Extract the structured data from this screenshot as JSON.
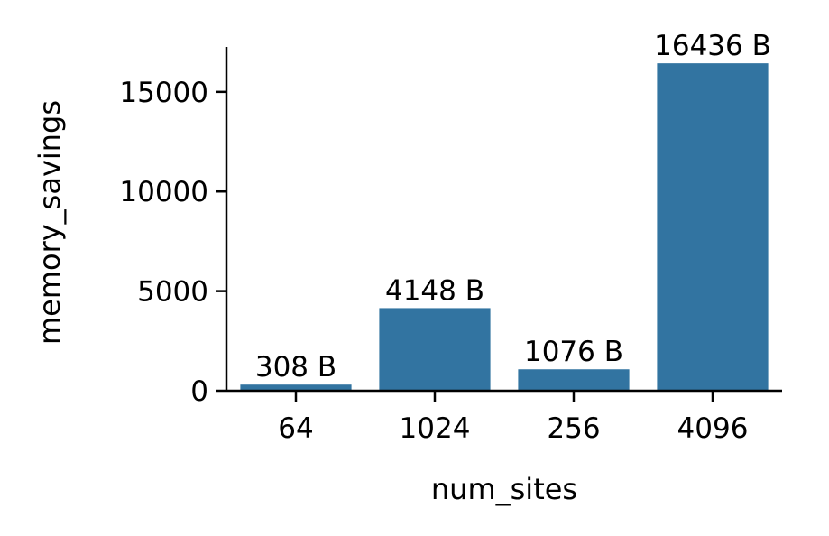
{
  "chart_data": {
    "type": "bar",
    "title": "",
    "xlabel": "num_sites",
    "ylabel": "memory_savings",
    "categories": [
      "64",
      "1024",
      "256",
      "4096"
    ],
    "values": [
      308,
      4148,
      1076,
      16436
    ],
    "bar_labels": [
      "308 B",
      "4148 B",
      "1076 B",
      "16436 B"
    ],
    "yticks": [
      0,
      5000,
      10000,
      15000
    ],
    "ytick_labels": [
      "0",
      "5000",
      "10000",
      "15000"
    ],
    "ylim": [
      0,
      17258
    ],
    "grid": false,
    "bar_color": "#3274a1"
  }
}
